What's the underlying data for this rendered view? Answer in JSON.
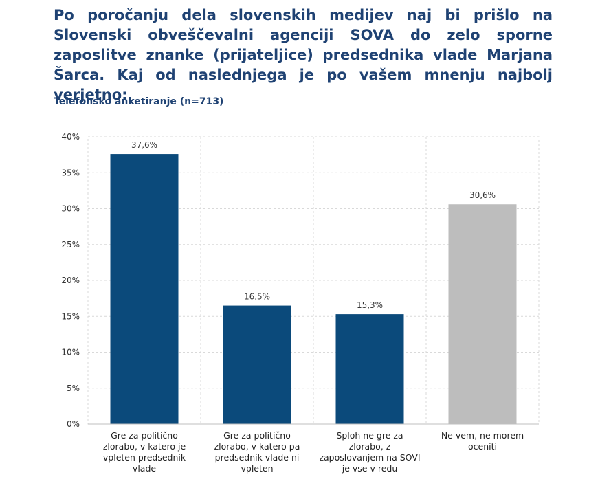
{
  "header": {
    "title": "Po poročanju dela slovenskih medijev naj bi prišlo na Slovenski obveščevalni agenciji SOVA do zelo sporne zaposlitve znanke (prijateljice) predsednika vlade Marjana Šarca. Kaj od naslednjega je po vašem mnenju najbolj verjetno:",
    "subtitle": "Telefonsko anketiranje (n=713)"
  },
  "colors": {
    "primary": "#0b4a7b",
    "neutral": "#bdbdbd",
    "title": "#1f4273"
  },
  "chart_data": {
    "type": "bar",
    "title": "Po poročanju dela slovenskih medijev naj bi prišlo na Slovenski obveščevalni agenciji SOVA do zelo sporne zaposlitve znanke (prijateljice) predsednika vlade Marjana Šarca. Kaj od naslednjega je po vašem mnenju najbolj verjetno:",
    "subtitle": "Telefonsko anketiranje (n=713)",
    "xlabel": "",
    "ylabel": "",
    "ylim": [
      0,
      40
    ],
    "yticks": [
      "0%",
      "5%",
      "10%",
      "15%",
      "20%",
      "25%",
      "30%",
      "35%",
      "40%"
    ],
    "grid": true,
    "categories": [
      [
        "Gre za politično",
        "zlorabo, v katero je",
        "vpleten predsednik",
        "vlade"
      ],
      [
        "Gre za politično",
        "zlorabo, v katero pa",
        "predsednik vlade ni",
        "vpleten"
      ],
      [
        "Sploh ne gre za",
        "zlorabo, z",
        "zaposlovanjem na SOVI",
        "je vse v redu"
      ],
      [
        "Ne vem, ne morem",
        "oceniti"
      ]
    ],
    "values": [
      37.6,
      16.5,
      15.3,
      30.6
    ],
    "labels": [
      "37,6%",
      "16,5%",
      "15,3%",
      "30,6%"
    ],
    "bar_colors": [
      "#0b4a7b",
      "#0b4a7b",
      "#0b4a7b",
      "#bdbdbd"
    ]
  }
}
